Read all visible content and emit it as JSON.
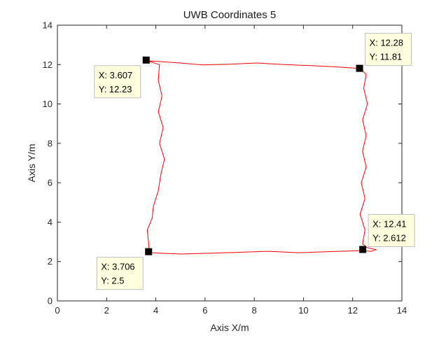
{
  "chart_data": {
    "type": "line",
    "title": "UWB Coordinates 5",
    "xlabel": "Axis X/m",
    "ylabel": "Axis Y/m",
    "xlim": [
      0,
      14
    ],
    "ylim": [
      0,
      14
    ],
    "xticks": [
      0,
      2,
      4,
      6,
      8,
      10,
      12,
      14
    ],
    "yticks": [
      0,
      2,
      4,
      6,
      8,
      10,
      12,
      14
    ],
    "grid": false,
    "line_color": "#ff0000",
    "marker_color": "#000000",
    "tooltip_bg": "#ffffe0",
    "series": [
      {
        "points": [
          [
            3.72,
            2.45
          ],
          [
            5.0,
            2.38
          ],
          [
            6.2,
            2.42
          ],
          [
            7.4,
            2.47
          ],
          [
            8.6,
            2.52
          ],
          [
            9.8,
            2.45
          ],
          [
            11.0,
            2.5
          ],
          [
            12.35,
            2.55
          ],
          [
            12.75,
            2.52
          ],
          [
            12.95,
            2.6
          ],
          [
            12.6,
            2.7
          ],
          [
            12.4,
            2.9
          ],
          [
            12.5,
            3.6
          ],
          [
            12.3,
            4.4
          ],
          [
            12.5,
            5.2
          ],
          [
            12.35,
            6.0
          ],
          [
            12.55,
            6.8
          ],
          [
            12.4,
            7.6
          ],
          [
            12.55,
            8.4
          ],
          [
            12.4,
            9.2
          ],
          [
            12.6,
            10.0
          ],
          [
            12.45,
            10.8
          ],
          [
            12.55,
            11.5
          ],
          [
            12.3,
            11.8
          ],
          [
            11.4,
            11.88
          ],
          [
            10.3,
            11.95
          ],
          [
            9.2,
            12.0
          ],
          [
            8.1,
            12.08
          ],
          [
            7.0,
            12.02
          ],
          [
            5.9,
            11.98
          ],
          [
            4.8,
            12.1
          ],
          [
            3.62,
            12.2
          ],
          [
            4.15,
            12.0
          ],
          [
            4.1,
            11.2
          ],
          [
            4.25,
            10.4
          ],
          [
            4.1,
            9.6
          ],
          [
            4.3,
            8.8
          ],
          [
            4.15,
            8.0
          ],
          [
            4.35,
            7.2
          ],
          [
            4.2,
            6.4
          ],
          [
            4.1,
            5.6
          ],
          [
            3.9,
            4.8
          ],
          [
            3.85,
            4.2
          ],
          [
            3.65,
            3.6
          ],
          [
            3.72,
            2.8
          ],
          [
            3.72,
            2.45
          ]
        ]
      }
    ],
    "markers": [
      {
        "x": 3.607,
        "y": 12.23,
        "tip_x": "X: 3.607",
        "tip_y": "Y: 12.23",
        "tip_side": "bottom-left"
      },
      {
        "x": 12.28,
        "y": 11.81,
        "tip_x": "X: 12.28",
        "tip_y": "Y: 11.81",
        "tip_side": "top-right"
      },
      {
        "x": 12.41,
        "y": 2.612,
        "tip_x": "X: 12.41",
        "tip_y": "Y: 2.612",
        "tip_side": "top-right"
      },
      {
        "x": 3.706,
        "y": 2.5,
        "tip_x": "X: 3.706",
        "tip_y": "Y: 2.5",
        "tip_side": "bottom-left"
      }
    ]
  }
}
